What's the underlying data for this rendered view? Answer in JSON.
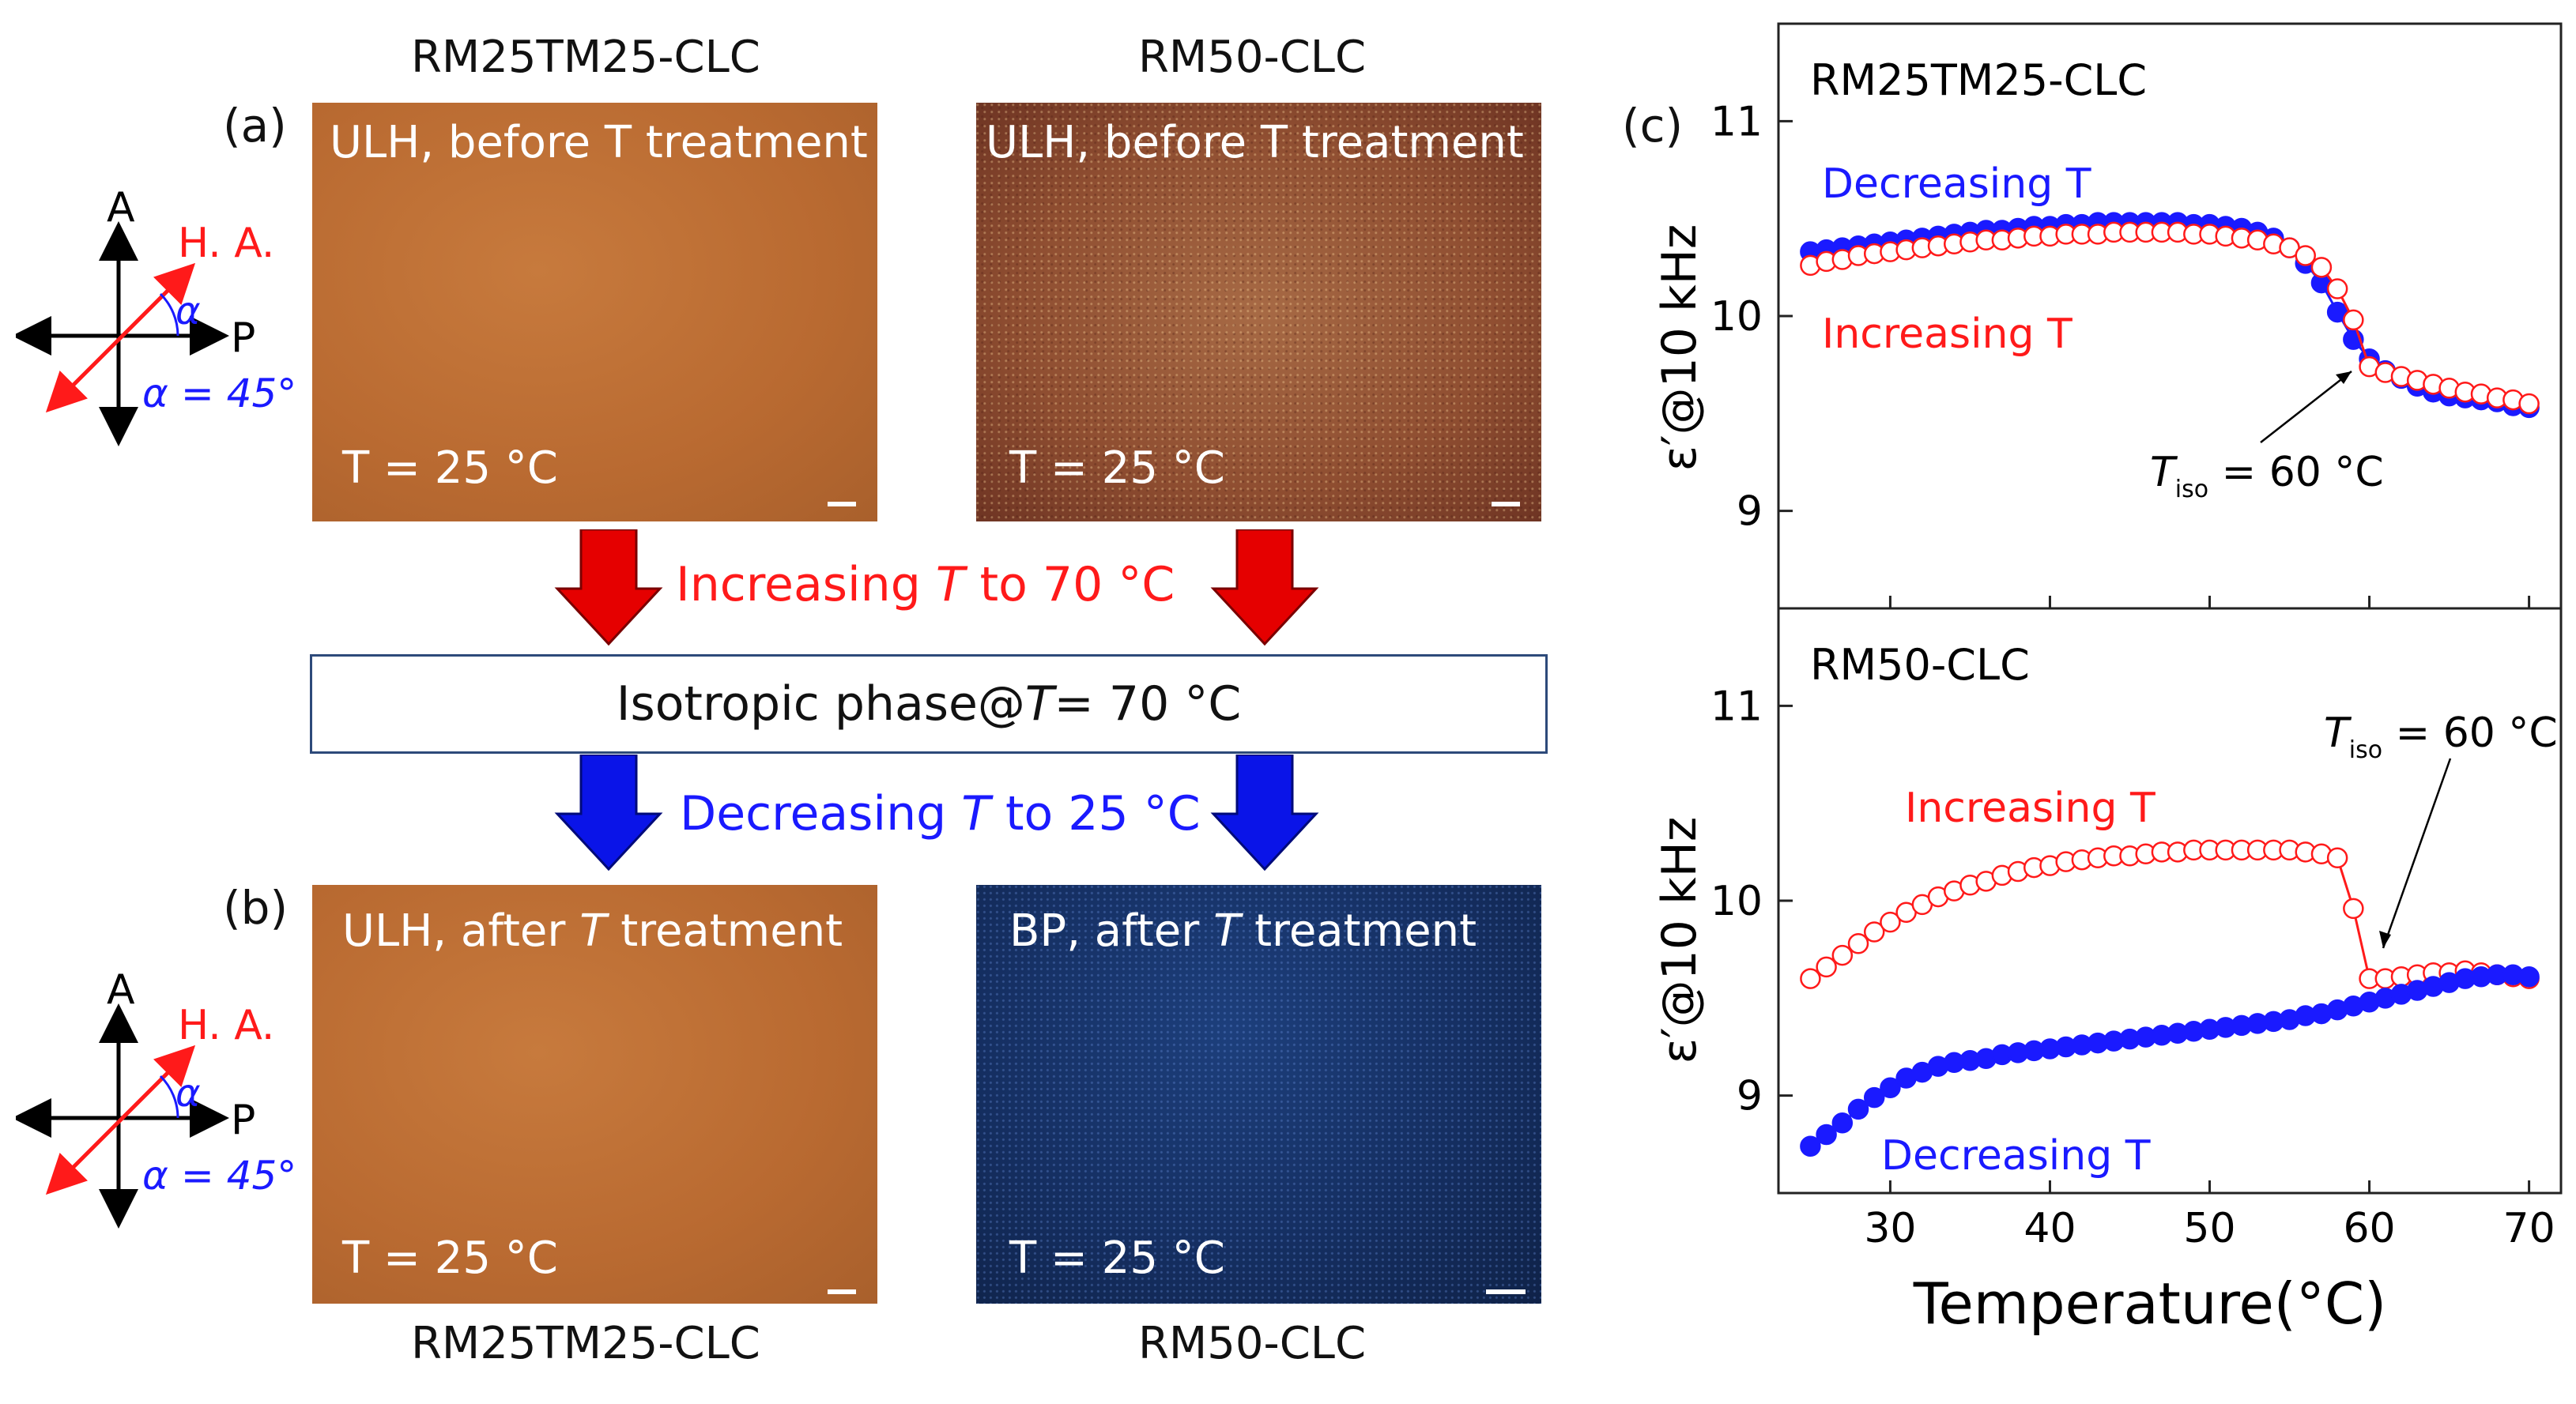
{
  "top_labels": {
    "left": "RM25TM25-CLC",
    "right": "RM50-CLC"
  },
  "bottom_labels": {
    "left": "RM25TM25-CLC",
    "right": "RM50-CLC"
  },
  "panel_labels": {
    "a": "(a)",
    "b": "(b)",
    "c": "(c)"
  },
  "photos": {
    "a_left": {
      "caption": "ULH, before T treatment",
      "temp": "T = 25 °C"
    },
    "a_right": {
      "caption": "ULH, before T treatment",
      "temp": "T = 25 °C"
    },
    "b_left": {
      "caption_pre": "ULH, after ",
      "caption_it": "T",
      "caption_post": " treatment",
      "temp": "T = 25 °C"
    },
    "b_right": {
      "caption_pre": "BP, after ",
      "caption_it": "T",
      "caption_post": " treatment",
      "temp": "T = 25 °C"
    }
  },
  "axes_diagram": {
    "analyzer": "A",
    "polarizer": "P",
    "helix_axis": "H. A.",
    "alpha_symbol": "α",
    "alpha_value": "α = 45°"
  },
  "flow": {
    "increase_pre": "Increasing ",
    "increase_it": "T",
    "increase_post": " to 70 °C",
    "iso_pre": "Isotropic phase@ ",
    "iso_it": "T",
    "iso_post": " = 70 °C",
    "decrease_pre": "Decreasing ",
    "decrease_it": "T",
    "decrease_post": " to 25 °C"
  },
  "colors": {
    "increase": "#ff1a1a",
    "decrease": "#1a1aff",
    "orange": "#b96a31",
    "blue_photo": "#152f62",
    "box_border": "#2d4a7a"
  },
  "chart_data": [
    {
      "type": "scatter",
      "title": "RM25TM25-CLC",
      "ylabel": "ε′@10 kHz",
      "xlabel": "Temperature(°C)",
      "xlim": [
        23,
        72
      ],
      "ylim": [
        8.5,
        11.5
      ],
      "yticks": [
        9,
        10,
        11
      ],
      "series": [
        {
          "name": "Decreasing T",
          "color": "#1a1aff",
          "filled": true,
          "x": [
            25,
            26,
            27,
            28,
            29,
            30,
            31,
            32,
            33,
            34,
            35,
            36,
            37,
            38,
            39,
            40,
            41,
            42,
            43,
            44,
            45,
            46,
            47,
            48,
            49,
            50,
            51,
            52,
            53,
            54,
            55,
            56,
            57,
            58,
            59,
            60,
            61,
            62,
            63,
            64,
            65,
            66,
            67,
            68,
            69,
            70
          ],
          "y": [
            10.33,
            10.34,
            10.35,
            10.36,
            10.37,
            10.38,
            10.39,
            10.4,
            10.41,
            10.42,
            10.43,
            10.44,
            10.44,
            10.45,
            10.46,
            10.46,
            10.47,
            10.47,
            10.48,
            10.48,
            10.48,
            10.48,
            10.48,
            10.48,
            10.47,
            10.47,
            10.46,
            10.45,
            10.43,
            10.4,
            10.35,
            10.27,
            10.17,
            10.02,
            9.88,
            9.78,
            9.72,
            9.68,
            9.64,
            9.61,
            9.59,
            9.58,
            9.57,
            9.56,
            9.54,
            9.53
          ]
        },
        {
          "name": "Increasing T",
          "color": "#ff1a1a",
          "filled": false,
          "x": [
            25,
            26,
            27,
            28,
            29,
            30,
            31,
            32,
            33,
            34,
            35,
            36,
            37,
            38,
            39,
            40,
            41,
            42,
            43,
            44,
            45,
            46,
            47,
            48,
            49,
            50,
            51,
            52,
            53,
            54,
            55,
            56,
            57,
            58,
            59,
            60,
            61,
            62,
            63,
            64,
            65,
            66,
            67,
            68,
            69,
            70
          ],
          "y": [
            10.26,
            10.28,
            10.29,
            10.31,
            10.32,
            10.33,
            10.34,
            10.35,
            10.36,
            10.37,
            10.38,
            10.39,
            10.39,
            10.4,
            10.41,
            10.41,
            10.42,
            10.42,
            10.42,
            10.43,
            10.43,
            10.43,
            10.43,
            10.43,
            10.42,
            10.42,
            10.41,
            10.4,
            10.39,
            10.37,
            10.35,
            10.31,
            10.25,
            10.14,
            9.98,
            9.74,
            9.71,
            9.69,
            9.67,
            9.65,
            9.63,
            9.61,
            9.6,
            9.58,
            9.57,
            9.55
          ]
        }
      ],
      "annotations": [
        {
          "label": "Decreasing T",
          "color": "#1a1aff"
        },
        {
          "label": "Increasing T",
          "color": "#ff1a1a"
        },
        {
          "label_main": "T",
          "label_sub": "iso",
          "label_post": " = 60 °C",
          "points_to": [
            60,
            9.76
          ]
        }
      ]
    },
    {
      "type": "scatter",
      "title": "RM50-CLC",
      "ylabel": "ε′@10 kHz",
      "xlabel": "Temperature(°C)",
      "xlim": [
        23,
        72
      ],
      "ylim": [
        8.5,
        11.5
      ],
      "xticks": [
        30,
        40,
        50,
        60,
        70
      ],
      "yticks": [
        9,
        10,
        11
      ],
      "series": [
        {
          "name": "Increasing T",
          "color": "#ff1a1a",
          "filled": false,
          "x": [
            25,
            26,
            27,
            28,
            29,
            30,
            31,
            32,
            33,
            34,
            35,
            36,
            37,
            38,
            39,
            40,
            41,
            42,
            43,
            44,
            45,
            46,
            47,
            48,
            49,
            50,
            51,
            52,
            53,
            54,
            55,
            56,
            57,
            58,
            59,
            60,
            61,
            62,
            63,
            64,
            65,
            66,
            67,
            68,
            69,
            70
          ],
          "y": [
            9.6,
            9.66,
            9.72,
            9.78,
            9.84,
            9.89,
            9.94,
            9.98,
            10.02,
            10.05,
            10.08,
            10.1,
            10.13,
            10.15,
            10.17,
            10.18,
            10.2,
            10.21,
            10.22,
            10.23,
            10.23,
            10.24,
            10.25,
            10.25,
            10.26,
            10.26,
            10.26,
            10.26,
            10.26,
            10.26,
            10.26,
            10.25,
            10.24,
            10.22,
            9.96,
            9.6,
            9.6,
            9.61,
            9.62,
            9.63,
            9.63,
            9.64,
            9.63,
            9.62,
            9.61,
            9.6
          ]
        },
        {
          "name": "Decreasing T",
          "color": "#1a1aff",
          "filled": true,
          "x": [
            25,
            26,
            27,
            28,
            29,
            30,
            31,
            32,
            33,
            34,
            35,
            36,
            37,
            38,
            39,
            40,
            41,
            42,
            43,
            44,
            45,
            46,
            47,
            48,
            49,
            50,
            51,
            52,
            53,
            54,
            55,
            56,
            57,
            58,
            59,
            60,
            61,
            62,
            63,
            64,
            65,
            66,
            67,
            68,
            69,
            70
          ],
          "y": [
            8.74,
            8.8,
            8.86,
            8.93,
            8.99,
            9.04,
            9.09,
            9.12,
            9.15,
            9.17,
            9.18,
            9.19,
            9.21,
            9.22,
            9.23,
            9.24,
            9.25,
            9.26,
            9.27,
            9.28,
            9.29,
            9.3,
            9.31,
            9.32,
            9.33,
            9.34,
            9.35,
            9.36,
            9.37,
            9.38,
            9.39,
            9.41,
            9.42,
            9.44,
            9.46,
            9.48,
            9.5,
            9.52,
            9.54,
            9.56,
            9.58,
            9.6,
            9.61,
            9.62,
            9.62,
            9.61
          ]
        }
      ],
      "annotations": [
        {
          "label": "Increasing T",
          "color": "#ff1a1a"
        },
        {
          "label": "Decreasing T",
          "color": "#1a1aff"
        },
        {
          "label_main": "T",
          "label_sub": "iso",
          "label_post": " = 60 °C",
          "points_to": [
            60,
            9.6
          ]
        }
      ]
    }
  ]
}
